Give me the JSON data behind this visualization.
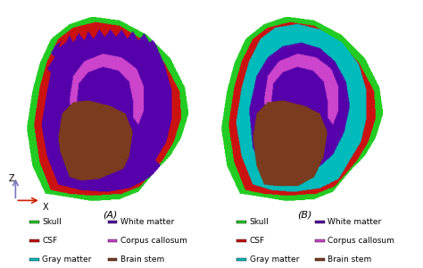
{
  "background_color": "#ffffff",
  "skull_color": "#22cc22",
  "csf_color": "#cc1111",
  "gray_color": "#00bbbb",
  "white_color": "#5500aa",
  "corpus_color": "#cc44cc",
  "brainstem_color": "#7a3b1e",
  "legend_items": [
    {
      "label": "Skull",
      "color": "#22cc22"
    },
    {
      "label": "CSF",
      "color": "#cc1111"
    },
    {
      "label": "Gray matter",
      "color": "#00bbbb"
    },
    {
      "label": "White matter",
      "color": "#5500aa"
    },
    {
      "label": "Corpus callosum",
      "color": "#cc44cc"
    },
    {
      "label": "Brain stem",
      "color": "#7a3b1e"
    }
  ],
  "label_A": "(A)",
  "label_B": "(B)",
  "axis_label_z": "Z",
  "axis_label_x": "X",
  "axis_arrow_color_z": "#7777bb",
  "axis_arrow_color_x": "#cc2200",
  "font_size_legend": 6.5,
  "font_size_label": 8
}
